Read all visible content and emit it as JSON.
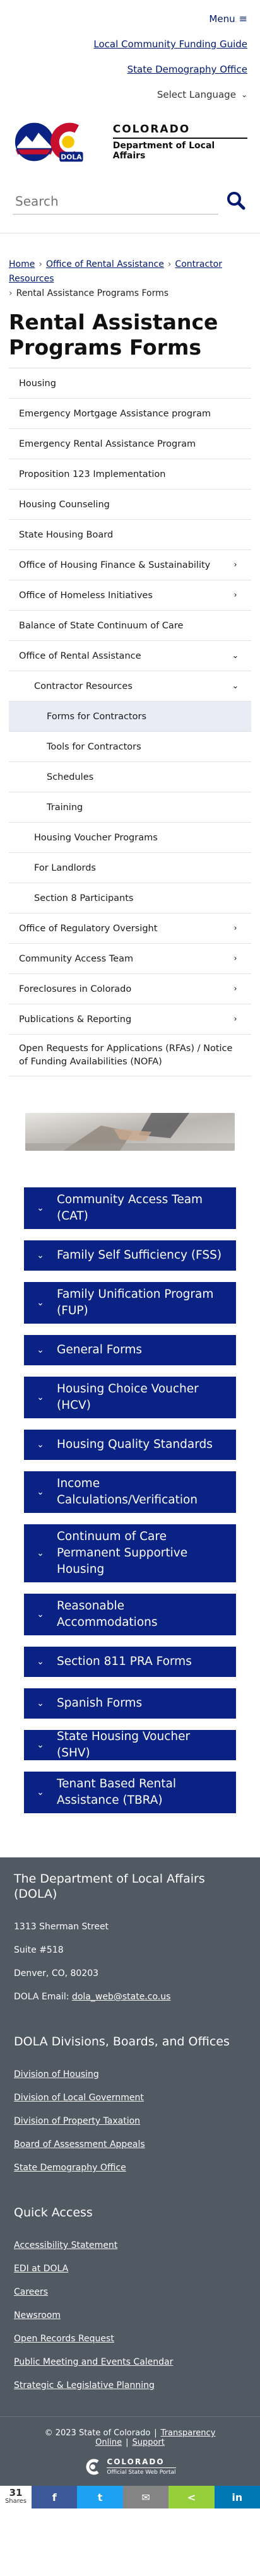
{
  "header": {
    "menu_label": "Menu",
    "links": [
      "Local Community Funding Guide",
      "State Demography Office"
    ],
    "language_label": "Select Language",
    "logo_state": "COLORADO",
    "logo_dept": "Department of Local Affairs",
    "logo_badge": "DOLA",
    "search_placeholder": "Search"
  },
  "breadcrumb": [
    "Home",
    "Office of Rental Assistance",
    "Contractor Resources",
    "Rental Assistance Programs Forms"
  ],
  "page_title": "Rental Assistance Programs Forms",
  "sidenav": [
    {
      "label": "Housing",
      "chevron": ""
    },
    {
      "label": "Emergency Mortgage Assistance program",
      "chevron": ""
    },
    {
      "label": "Emergency Rental Assistance Program",
      "chevron": ""
    },
    {
      "label": "Proposition 123 Implementation",
      "chevron": ""
    },
    {
      "label": "Housing Counseling",
      "chevron": ""
    },
    {
      "label": "State Housing Board",
      "chevron": ""
    },
    {
      "label": "Office of Housing Finance & Sustainability",
      "chevron": "›"
    },
    {
      "label": "Office of Homeless Initiatives",
      "chevron": "›"
    },
    {
      "label": "Balance of State Continuum of Care",
      "chevron": ""
    },
    {
      "label": "Office of Rental Assistance",
      "chevron": "⌄"
    },
    {
      "label": "Contractor Resources",
      "chevron": "⌄",
      "level": 2
    },
    {
      "label": "Forms for Contractors",
      "chevron": "",
      "level": 3,
      "active": true
    },
    {
      "label": "Tools for Contractors",
      "chevron": "",
      "level": 3
    },
    {
      "label": "Schedules",
      "chevron": "",
      "level": 3
    },
    {
      "label": "Training",
      "chevron": "",
      "level": 3
    },
    {
      "label": "Housing Voucher Programs",
      "chevron": "",
      "level": 2
    },
    {
      "label": "For Landlords",
      "chevron": "",
      "level": 2
    },
    {
      "label": "Section 8 Participants",
      "chevron": "",
      "level": 2
    },
    {
      "label": "Office of Regulatory Oversight",
      "chevron": "›"
    },
    {
      "label": "Community Access Team",
      "chevron": "›"
    },
    {
      "label": "Foreclosures in Colorado",
      "chevron": "›"
    },
    {
      "label": "Publications & Reporting",
      "chevron": "›"
    },
    {
      "label": "Open Requests for Applications (RFAs) / Notice of Funding Availabilities (NOFA)",
      "chevron": "",
      "tall": true
    }
  ],
  "accordions": [
    {
      "label": "Community Access Team (CAT)",
      "lines": 2
    },
    {
      "label": "Family Self Sufficiency (FSS)",
      "lines": 1
    },
    {
      "label": "Family Unification Program (FUP)",
      "lines": 2
    },
    {
      "label": "General Forms",
      "lines": 1
    },
    {
      "label": "Housing Choice Voucher (HCV)",
      "lines": 2
    },
    {
      "label": "Housing Quality Standards",
      "lines": 1
    },
    {
      "label": "Income Calculations/Verification",
      "lines": 2
    },
    {
      "label": "Continuum of Care Permanent Supportive Housing",
      "lines": 3
    },
    {
      "label": "Reasonable Accommodations",
      "lines": 2
    },
    {
      "label": "Section 811 PRA Forms",
      "lines": 1
    },
    {
      "label": "Spanish Forms",
      "lines": 1
    },
    {
      "label": "State Housing Voucher (SHV)",
      "lines": 1
    },
    {
      "label": "Tenant Based Rental Assistance (TBRA)",
      "lines": 2
    }
  ],
  "footer": {
    "org_title": "The Department of Local Affairs (DOLA)",
    "address": [
      "1313 Sherman Street",
      "Suite  #518",
      "Denver, CO, 80203"
    ],
    "email_label": "DOLA Email:",
    "email": "dola_web@state.co.us",
    "divisions_title": "DOLA Divisions, Boards, and Offices",
    "divisions": [
      "Division of Housing",
      "Division of Local Government",
      "Division of Property Taxation",
      "Board of Assessment Appeals",
      "State Demography Office"
    ],
    "quick_title": "Quick Access",
    "quick": [
      "Accessibility Statement",
      "EDI at DOLA",
      "Careers",
      "Newsroom",
      "Open Records Request",
      "Public Meeting and Events Calendar",
      "Strategic & Legislative Planning"
    ],
    "copyright": "© 2023 State of Colorado",
    "bottom_links": [
      "Transparency Online",
      "Support"
    ],
    "bottom_logo_state": "COLORADO",
    "bottom_logo_sub": "Official State Web Portal"
  },
  "share": {
    "count": "31",
    "count_label": "Shares",
    "buttons": [
      {
        "icon": "facebook-icon",
        "glyph": "f",
        "color": "#3b5998"
      },
      {
        "icon": "twitter-icon",
        "glyph": "t",
        "color": "#1da1f2"
      },
      {
        "icon": "email-icon",
        "glyph": "✉",
        "color": "#848484"
      },
      {
        "icon": "sharethis-icon",
        "glyph": "<",
        "color": "#95d03a"
      },
      {
        "icon": "linkedin-icon",
        "glyph": "in",
        "color": "#0077b5"
      }
    ]
  },
  "colors": {
    "primary": "#0a2283",
    "link": "#001970",
    "footer": "#515963"
  }
}
